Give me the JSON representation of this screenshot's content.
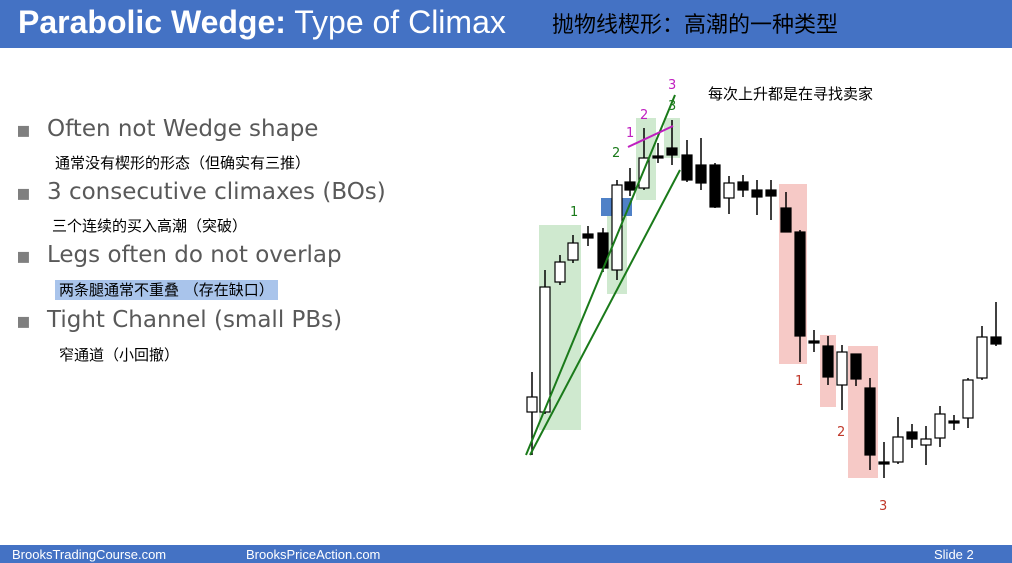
{
  "title": {
    "bold": "Parabolic Wedge:",
    "rest": " Type of Climax",
    "zh": "抛物线楔形：高潮的一种类型"
  },
  "bullets": [
    {
      "text": "Often not Wedge shape",
      "sub": "通常没有楔形的形态（但确实有三推）"
    },
    {
      "text": "3 consecutive climaxes (BOs)",
      "sub": "三个连续的买入高潮（突破）"
    },
    {
      "text": "Legs often do not overlap",
      "sub": "两条腿通常不重叠 （存在缺口）"
    },
    {
      "text": "Tight Channel (small PBs)",
      "sub": "窄通道（小回撤）"
    }
  ],
  "chart": {
    "annotation": "每次上升都是在寻找卖家",
    "labels": {
      "g1": "1",
      "g2": "2",
      "g3": "3",
      "p1": "1",
      "p2": "2",
      "p3": "3",
      "r1": "1",
      "r2": "2",
      "r3": "3"
    },
    "colors": {
      "green_line": "#1a7a1a",
      "magenta": "#c020c0",
      "red_label": "#c0392b",
      "green_zone": "#cfe9cf",
      "red_zone": "#f6c9c6",
      "blue_zone": "#4f81c7"
    }
  },
  "footer": {
    "left": "BrooksTradingCourse.com",
    "center": "BrooksPriceAction.com",
    "right": "Slide 2"
  }
}
